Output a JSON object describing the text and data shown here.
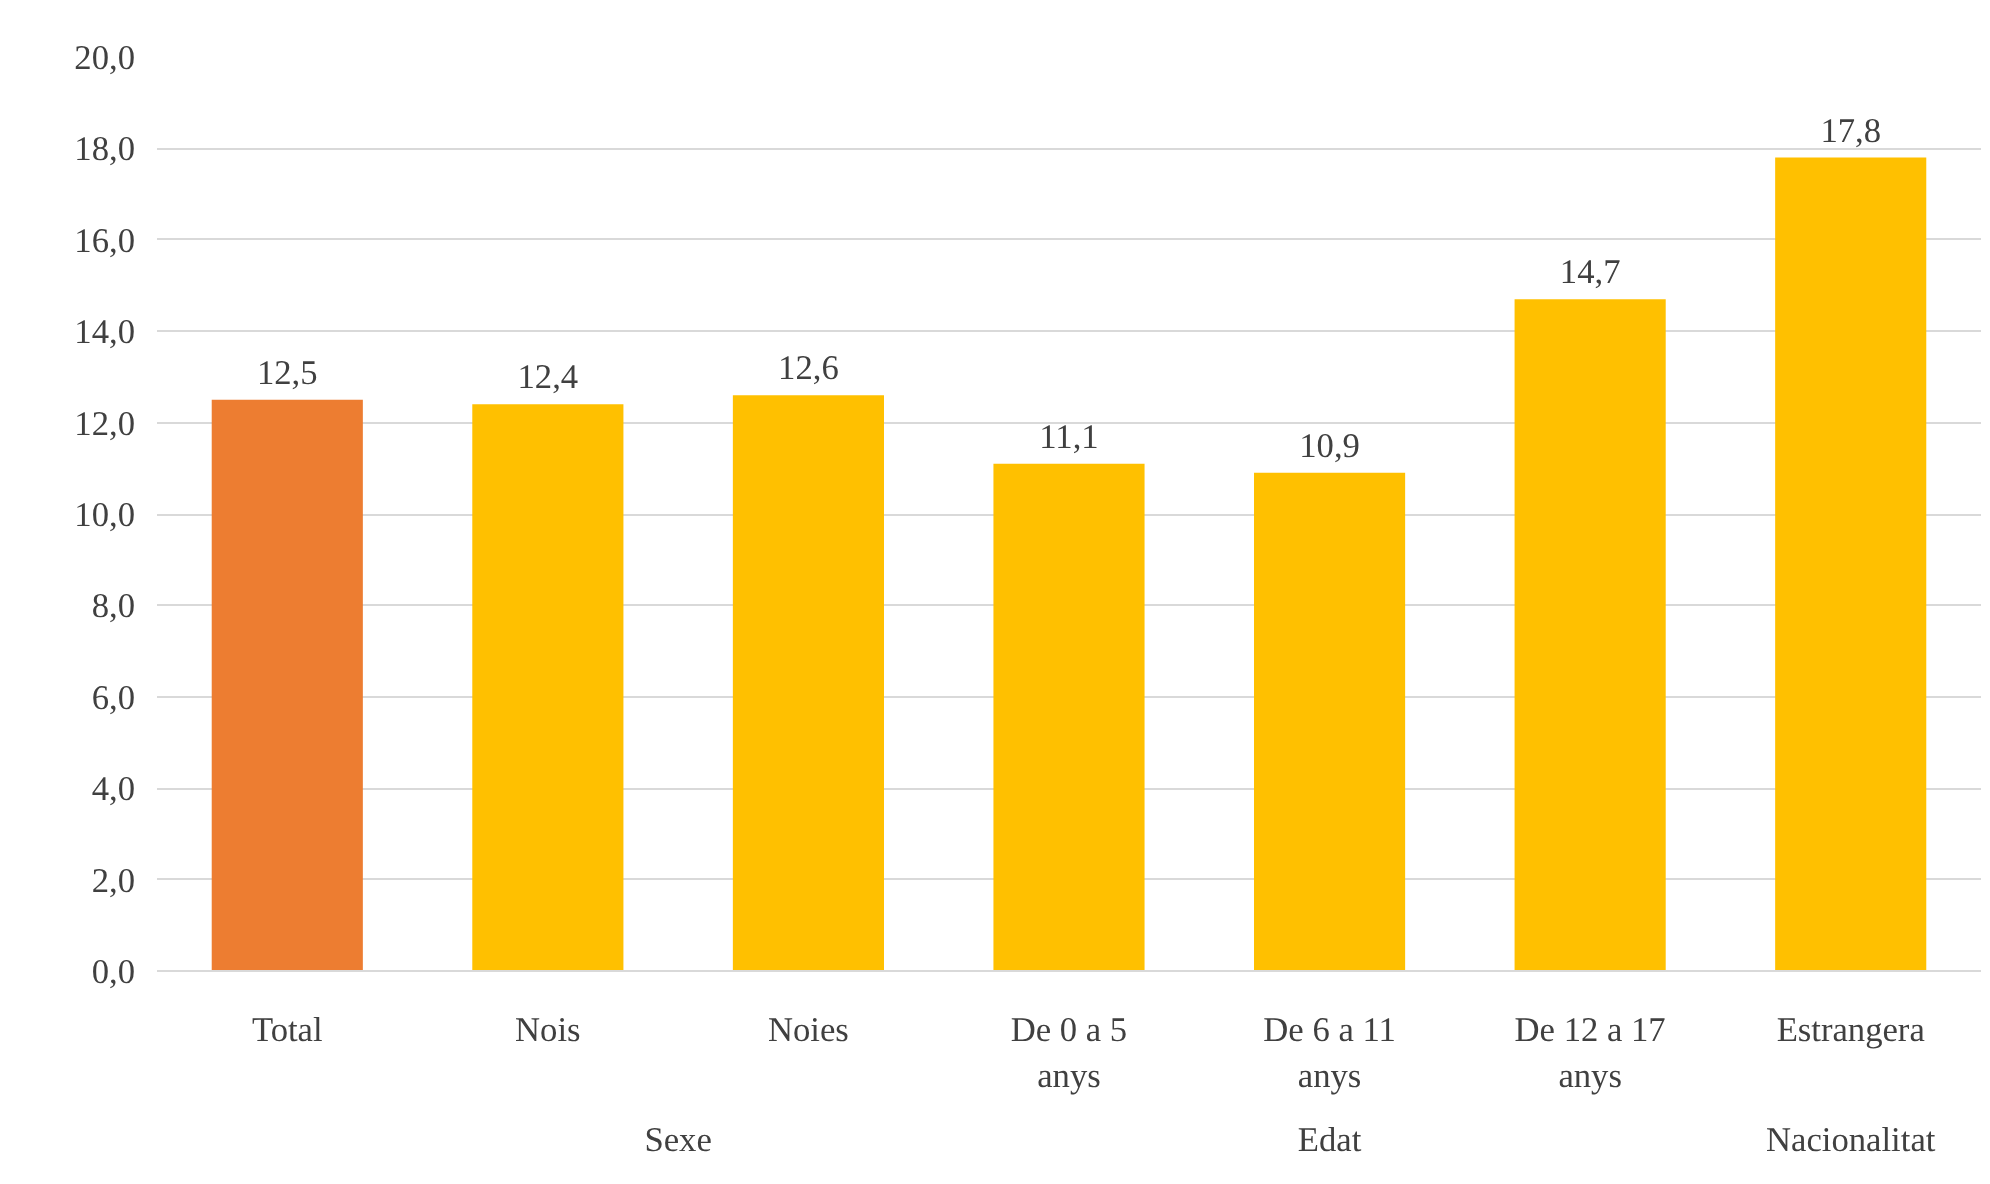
{
  "chart_data": {
    "type": "bar",
    "categories": [
      "Total",
      "Nois",
      "Noies",
      "De 0 a 5\nanys",
      "De 6 a 11\nanys",
      "De 12 a 17\nanys",
      "Estrangera"
    ],
    "values": [
      12.5,
      12.4,
      12.6,
      11.1,
      10.9,
      14.7,
      17.8
    ],
    "colors": [
      "#ed7d31",
      "#ffc000",
      "#ffc000",
      "#ffc000",
      "#ffc000",
      "#ffc000",
      "#ffc000"
    ],
    "value_labels": [
      "12,5",
      "12,4",
      "12,6",
      "11,1",
      "10,9",
      "14,7",
      "17,8"
    ],
    "ylim": [
      0,
      20
    ],
    "yticks": [
      {
        "value": 0,
        "label": "0,0"
      },
      {
        "value": 2,
        "label": "2,0"
      },
      {
        "value": 4,
        "label": "4,0"
      },
      {
        "value": 6,
        "label": "6,0"
      },
      {
        "value": 8,
        "label": "8,0"
      },
      {
        "value": 10,
        "label": "10,0"
      },
      {
        "value": 12,
        "label": "12,0"
      },
      {
        "value": 14,
        "label": "14,0"
      },
      {
        "value": 16,
        "label": "16,0"
      },
      {
        "value": 18,
        "label": "18,0"
      },
      {
        "value": 20,
        "label": "20,0"
      }
    ],
    "annotations": [
      "Sexe",
      "Edat",
      "Nacionalitat"
    ],
    "grid": "y"
  }
}
